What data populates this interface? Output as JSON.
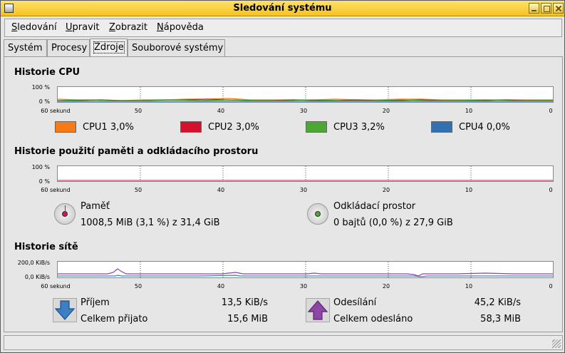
{
  "window": {
    "title": "Sledování systému"
  },
  "menu": [
    "Sledování",
    "Upravit",
    "Zobrazit",
    "Nápověda"
  ],
  "tabs": [
    {
      "label": "Systém",
      "active": false
    },
    {
      "label": "Procesy",
      "active": false
    },
    {
      "label": "Zdroje",
      "active": true
    },
    {
      "label": "Souborové systémy",
      "active": false
    }
  ],
  "cpu": {
    "title": "Historie CPU",
    "y_top": "100 %",
    "y_bottom": "0 %",
    "x_ticks": [
      "60 sekund",
      "50",
      "40",
      "30",
      "20",
      "10",
      "0"
    ],
    "legend": [
      {
        "label": "CPU1",
        "value": "3,0%",
        "color": "#f77a17"
      },
      {
        "label": "CPU2",
        "value": "3,0%",
        "color": "#d4112c"
      },
      {
        "label": "CPU3",
        "value": "3,2%",
        "color": "#4ea636"
      },
      {
        "label": "CPU4",
        "value": "0,0%",
        "color": "#3171b2"
      }
    ]
  },
  "memory": {
    "title": "Historie použití paměti a odkládacího prostoru",
    "y_top": "100 %",
    "y_bottom": "0 %",
    "x_ticks": [
      "60 sekund",
      "50",
      "40",
      "30",
      "20",
      "10",
      "0"
    ],
    "ram": {
      "label": "Paměť",
      "value": "1008,5 MiB (3,1 %) z 31,4 GiB",
      "color": "#c31d4f",
      "fraction": 0.031
    },
    "swap": {
      "label": "Odkládací prostor",
      "value": "0 bajtů (0,0 %) z 27,9 GiB",
      "color": "#4ea636",
      "fraction": 0.0
    }
  },
  "network": {
    "title": "Historie sítě",
    "y_top": "200,0 KiB/s",
    "y_bottom": "0,0 KiB/s",
    "x_ticks": [
      "60 sekund",
      "50",
      "40",
      "30",
      "20",
      "10",
      "0"
    ],
    "receive": {
      "label": "Příjem",
      "rate": "13,5 KiB/s",
      "total_label": "Celkem přijato",
      "total": "15,6 MiB",
      "color": "#3d7fc4",
      "icon": "arrow-down-icon"
    },
    "send": {
      "label": "Odesílání",
      "rate": "45,2 KiB/s",
      "total_label": "Celkem odesláno",
      "total": "58,3 MiB",
      "color": "#8d45a6",
      "icon": "arrow-up-icon"
    }
  }
}
